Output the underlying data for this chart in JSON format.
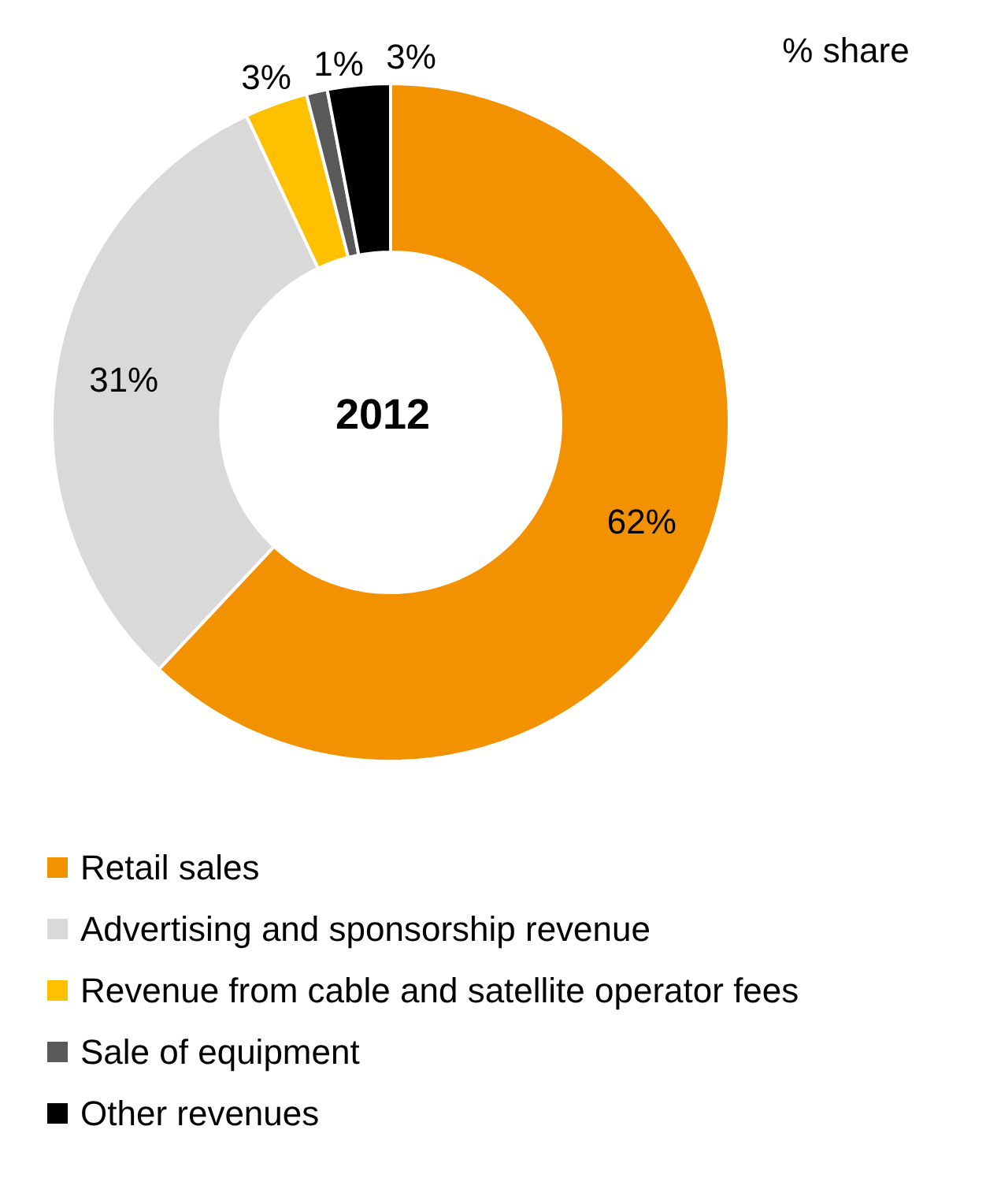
{
  "chart_data": {
    "type": "donut",
    "title": "2012",
    "subtitle": "% share",
    "categories": [
      "Retail sales",
      "Advertising and sponsorship revenue",
      "Revenue from cable and satellite operator fees",
      "Sale of equipment",
      "Other revenues"
    ],
    "values": [
      62,
      31,
      3,
      1,
      3
    ],
    "colors": [
      "#f39200",
      "#d9d9d9",
      "#ffc000",
      "#595959",
      "#000000"
    ],
    "value_labels": [
      "62%",
      "31%",
      "3%",
      "1%",
      "3%"
    ],
    "legend": "bottom"
  }
}
